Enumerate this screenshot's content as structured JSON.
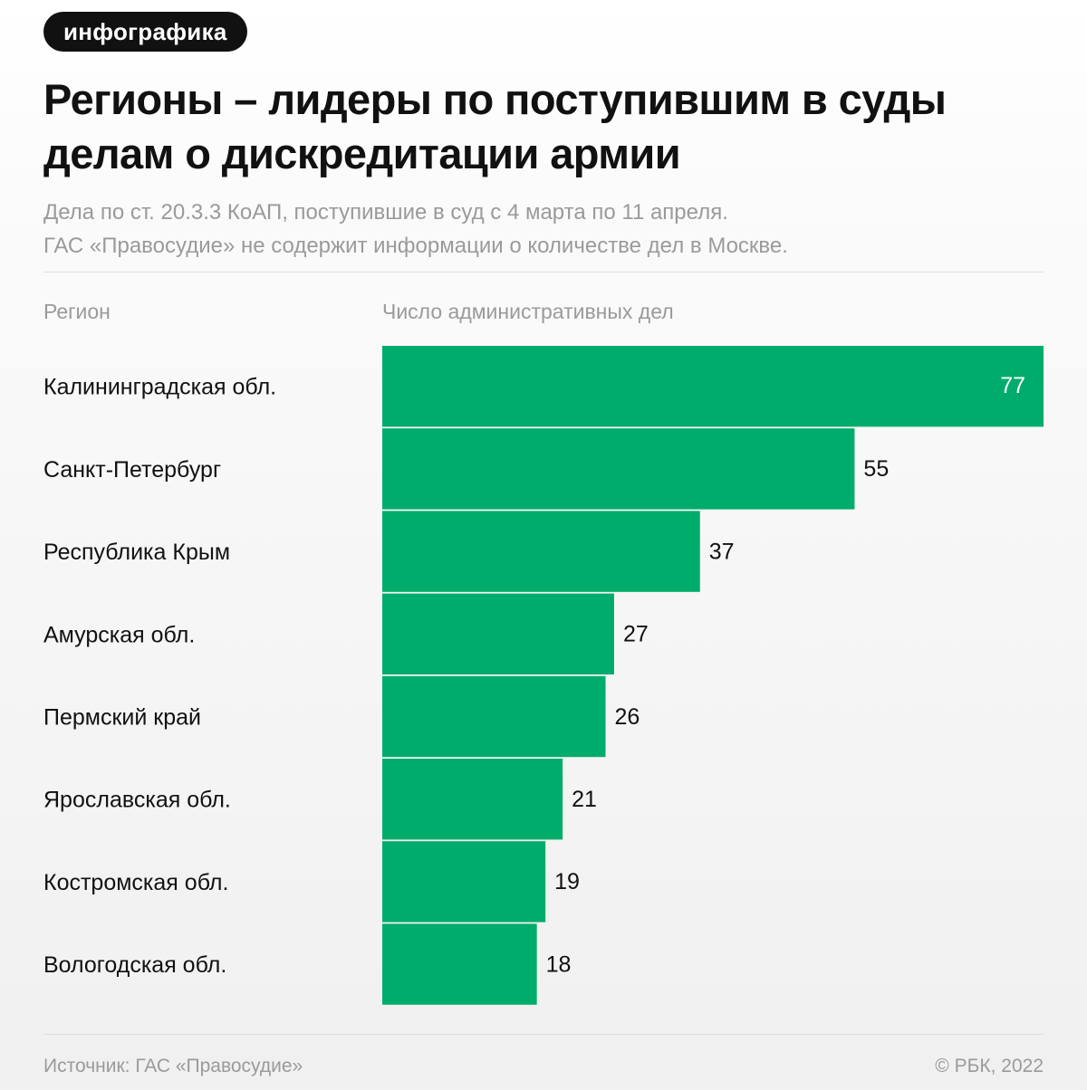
{
  "tag": "инфографика",
  "title": "Регионы – лидеры по поступившим в суды делам о дискредитации армии",
  "subtitle": [
    "Дела по ст. 20.3.3 КоАП, поступившие в суд с 4 марта по 11 апреля.",
    "ГАС «Правосудие» не содержит информации о количестве дел в Москве."
  ],
  "columns": {
    "region": "Регион",
    "value": "Число административных дел"
  },
  "chart_data": {
    "type": "bar",
    "orientation": "horizontal",
    "categories": [
      "Калининградская обл.",
      "Санкт-Петербург",
      "Республика Крым",
      "Амурская обл.",
      "Пермский край",
      "Ярославская обл.",
      "Костромская обл.",
      "Вологодская обл."
    ],
    "values": [
      77,
      55,
      37,
      27,
      26,
      21,
      19,
      18
    ],
    "xlim": [
      0,
      77
    ],
    "bar_color": "#00AC6B",
    "grid": false
  },
  "footer": {
    "source": "Источник: ГАС «Правосудие»",
    "copyright": "© РБК, 2022"
  }
}
